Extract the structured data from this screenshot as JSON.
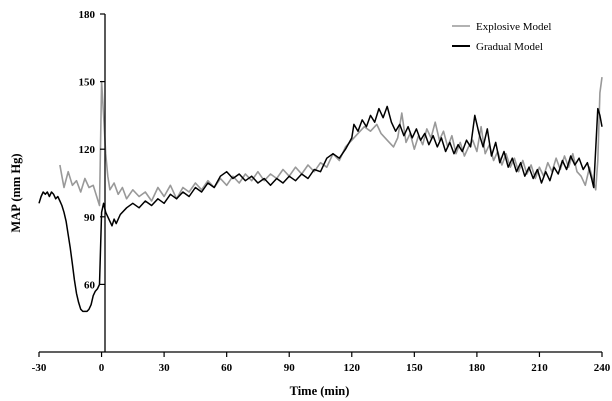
{
  "chart_data": {
    "type": "line",
    "xlabel": "Time (min)",
    "ylabel": "MAP (mm Hg)",
    "xlim": [
      -30,
      240
    ],
    "ylim": [
      30,
      180
    ],
    "x_ticks": [
      -30,
      0,
      30,
      60,
      90,
      120,
      150,
      180,
      210,
      240
    ],
    "y_ticks": [
      60,
      90,
      120,
      150,
      180
    ],
    "grid": false,
    "legend_position": "top-right",
    "series": [
      {
        "name": "Explosive Model",
        "color": "#999999",
        "points": [
          [
            -20,
            113
          ],
          [
            -19,
            108
          ],
          [
            -18,
            103
          ],
          [
            -16,
            110
          ],
          [
            -14,
            104
          ],
          [
            -12,
            106
          ],
          [
            -10,
            101
          ],
          [
            -8,
            107
          ],
          [
            -6,
            103
          ],
          [
            -4,
            104
          ],
          [
            -2,
            98
          ],
          [
            -1,
            95
          ],
          [
            0,
            150
          ],
          [
            1,
            135
          ],
          [
            2,
            118
          ],
          [
            3,
            108
          ],
          [
            4,
            102
          ],
          [
            6,
            105
          ],
          [
            8,
            100
          ],
          [
            10,
            103
          ],
          [
            12,
            98
          ],
          [
            15,
            102
          ],
          [
            18,
            99
          ],
          [
            21,
            101
          ],
          [
            24,
            97
          ],
          [
            27,
            103
          ],
          [
            30,
            99
          ],
          [
            33,
            104
          ],
          [
            36,
            98
          ],
          [
            39,
            103
          ],
          [
            42,
            101
          ],
          [
            45,
            105
          ],
          [
            48,
            102
          ],
          [
            51,
            106
          ],
          [
            54,
            103
          ],
          [
            57,
            107
          ],
          [
            60,
            104
          ],
          [
            63,
            108
          ],
          [
            66,
            105
          ],
          [
            69,
            109
          ],
          [
            72,
            106
          ],
          [
            75,
            110
          ],
          [
            78,
            106
          ],
          [
            81,
            109
          ],
          [
            84,
            107
          ],
          [
            87,
            111
          ],
          [
            90,
            108
          ],
          [
            93,
            112
          ],
          [
            96,
            109
          ],
          [
            99,
            113
          ],
          [
            102,
            110
          ],
          [
            105,
            114
          ],
          [
            108,
            112
          ],
          [
            111,
            118
          ],
          [
            114,
            115
          ],
          [
            117,
            121
          ],
          [
            120,
            124
          ],
          [
            123,
            127
          ],
          [
            126,
            130
          ],
          [
            129,
            128
          ],
          [
            132,
            131
          ],
          [
            134,
            127
          ],
          [
            137,
            124
          ],
          [
            140,
            121
          ],
          [
            142,
            125
          ],
          [
            144,
            136
          ],
          [
            146,
            123
          ],
          [
            148,
            127
          ],
          [
            150,
            120
          ],
          [
            152,
            126
          ],
          [
            154,
            122
          ],
          [
            156,
            129
          ],
          [
            158,
            125
          ],
          [
            160,
            132
          ],
          [
            162,
            124
          ],
          [
            164,
            128
          ],
          [
            166,
            121
          ],
          [
            168,
            126
          ],
          [
            170,
            118
          ],
          [
            172,
            123
          ],
          [
            174,
            117
          ],
          [
            176,
            121
          ],
          [
            178,
            124
          ],
          [
            180,
            119
          ],
          [
            182,
            130
          ],
          [
            184,
            118
          ],
          [
            186,
            122
          ],
          [
            188,
            115
          ],
          [
            190,
            119
          ],
          [
            192,
            113
          ],
          [
            194,
            118
          ],
          [
            196,
            112
          ],
          [
            198,
            116
          ],
          [
            200,
            110
          ],
          [
            202,
            115
          ],
          [
            204,
            109
          ],
          [
            206,
            113
          ],
          [
            208,
            107
          ],
          [
            210,
            112
          ],
          [
            212,
            108
          ],
          [
            214,
            114
          ],
          [
            216,
            110
          ],
          [
            218,
            116
          ],
          [
            220,
            111
          ],
          [
            222,
            117
          ],
          [
            224,
            112
          ],
          [
            226,
            118
          ],
          [
            228,
            110
          ],
          [
            230,
            108
          ],
          [
            232,
            104
          ],
          [
            234,
            112
          ],
          [
            236,
            105
          ],
          [
            237,
            102
          ],
          [
            238,
            115
          ],
          [
            239,
            145
          ],
          [
            240,
            152
          ]
        ]
      },
      {
        "name": "Gradual Model",
        "color": "#000000",
        "points": [
          [
            -30,
            96
          ],
          [
            -29,
            99
          ],
          [
            -28,
            101
          ],
          [
            -27,
            100
          ],
          [
            -26,
            101
          ],
          [
            -25,
            99
          ],
          [
            -24,
            101
          ],
          [
            -23,
            100
          ],
          [
            -22,
            98
          ],
          [
            -21,
            99
          ],
          [
            -20,
            97
          ],
          [
            -19,
            95
          ],
          [
            -18,
            92
          ],
          [
            -17,
            88
          ],
          [
            -16,
            82
          ],
          [
            -15,
            76
          ],
          [
            -14,
            69
          ],
          [
            -13,
            62
          ],
          [
            -12,
            56
          ],
          [
            -11,
            52
          ],
          [
            -10,
            49
          ],
          [
            -9,
            48
          ],
          [
            -8,
            48
          ],
          [
            -7,
            48
          ],
          [
            -6,
            49
          ],
          [
            -5,
            51
          ],
          [
            -4,
            55
          ],
          [
            -3,
            57
          ],
          [
            -2,
            58
          ],
          [
            -1,
            60
          ],
          [
            0,
            92
          ],
          [
            1,
            96
          ],
          [
            2,
            92
          ],
          [
            3,
            90
          ],
          [
            4,
            88
          ],
          [
            5,
            86
          ],
          [
            6,
            89
          ],
          [
            7,
            87
          ],
          [
            9,
            91
          ],
          [
            12,
            94
          ],
          [
            15,
            96
          ],
          [
            18,
            94
          ],
          [
            21,
            97
          ],
          [
            24,
            95
          ],
          [
            27,
            98
          ],
          [
            30,
            96
          ],
          [
            33,
            100
          ],
          [
            36,
            98
          ],
          [
            39,
            101
          ],
          [
            42,
            99
          ],
          [
            45,
            103
          ],
          [
            48,
            101
          ],
          [
            51,
            105
          ],
          [
            54,
            103
          ],
          [
            57,
            108
          ],
          [
            60,
            110
          ],
          [
            63,
            107
          ],
          [
            66,
            109
          ],
          [
            69,
            106
          ],
          [
            72,
            108
          ],
          [
            75,
            105
          ],
          [
            78,
            107
          ],
          [
            81,
            104
          ],
          [
            84,
            107
          ],
          [
            87,
            105
          ],
          [
            90,
            108
          ],
          [
            93,
            106
          ],
          [
            96,
            109
          ],
          [
            99,
            107
          ],
          [
            102,
            111
          ],
          [
            105,
            110
          ],
          [
            108,
            116
          ],
          [
            111,
            118
          ],
          [
            114,
            116
          ],
          [
            117,
            120
          ],
          [
            120,
            125
          ],
          [
            121,
            131
          ],
          [
            123,
            128
          ],
          [
            125,
            133
          ],
          [
            127,
            130
          ],
          [
            129,
            135
          ],
          [
            131,
            132
          ],
          [
            133,
            138
          ],
          [
            135,
            134
          ],
          [
            137,
            139
          ],
          [
            139,
            132
          ],
          [
            141,
            128
          ],
          [
            143,
            131
          ],
          [
            145,
            126
          ],
          [
            147,
            130
          ],
          [
            149,
            125
          ],
          [
            151,
            129
          ],
          [
            153,
            124
          ],
          [
            155,
            127
          ],
          [
            157,
            122
          ],
          [
            159,
            126
          ],
          [
            161,
            121
          ],
          [
            163,
            125
          ],
          [
            165,
            119
          ],
          [
            167,
            123
          ],
          [
            169,
            118
          ],
          [
            171,
            122
          ],
          [
            173,
            119
          ],
          [
            175,
            124
          ],
          [
            177,
            121
          ],
          [
            179,
            135
          ],
          [
            181,
            127
          ],
          [
            183,
            121
          ],
          [
            185,
            129
          ],
          [
            187,
            117
          ],
          [
            189,
            123
          ],
          [
            191,
            114
          ],
          [
            193,
            119
          ],
          [
            195,
            112
          ],
          [
            197,
            116
          ],
          [
            199,
            110
          ],
          [
            201,
            114
          ],
          [
            203,
            108
          ],
          [
            205,
            112
          ],
          [
            207,
            107
          ],
          [
            209,
            111
          ],
          [
            211,
            105
          ],
          [
            213,
            110
          ],
          [
            215,
            106
          ],
          [
            217,
            112
          ],
          [
            219,
            109
          ],
          [
            221,
            115
          ],
          [
            223,
            111
          ],
          [
            225,
            117
          ],
          [
            227,
            113
          ],
          [
            229,
            116
          ],
          [
            231,
            111
          ],
          [
            233,
            114
          ],
          [
            235,
            107
          ],
          [
            236,
            103
          ],
          [
            237,
            120
          ],
          [
            238,
            138
          ],
          [
            239,
            135
          ],
          [
            240,
            130
          ]
        ]
      }
    ]
  }
}
